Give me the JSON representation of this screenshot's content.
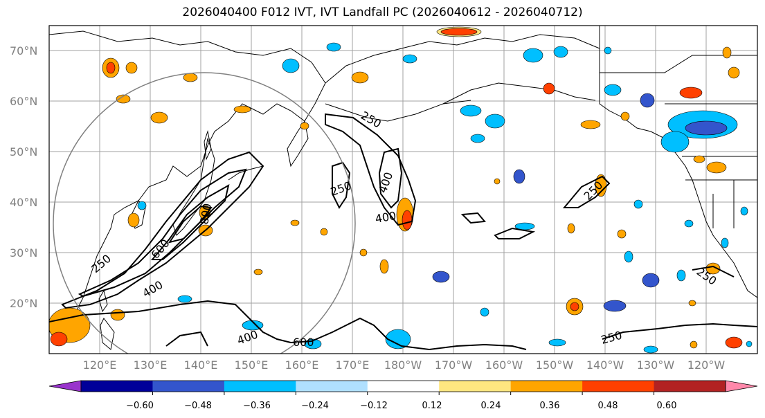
{
  "title": "2026040400 F012 IVT, IVT Landfall PC (2026040612 - 2026040712)",
  "lat_labels": [
    "70°N",
    "60°N",
    "50°N",
    "40°N",
    "30°N",
    "20°N"
  ],
  "lon_labels": [
    "120°E",
    "130°E",
    "140°E",
    "150°E",
    "160°E",
    "170°E",
    "180°W",
    "170°W",
    "160°W",
    "150°W",
    "140°W",
    "130°W",
    "120°W"
  ],
  "colorbar": {
    "ticks": [
      "−0.60",
      "−0.48",
      "−0.36",
      "−0.24",
      "−0.12",
      "0.12",
      "0.24",
      "0.36",
      "0.48",
      "0.60"
    ],
    "colors": [
      "#9933cc",
      "#000099",
      "#3355cc",
      "#00bfff",
      "#b0e0ff",
      "#ffffff",
      "#ffe680",
      "#ffa500",
      "#ff4000",
      "#b22222",
      "#ff88aa"
    ]
  },
  "contour_labels": [
    "250",
    "250",
    "250",
    "250",
    "250",
    "400",
    "400",
    "400",
    "400",
    "600",
    "600",
    "800",
    "250"
  ]
}
